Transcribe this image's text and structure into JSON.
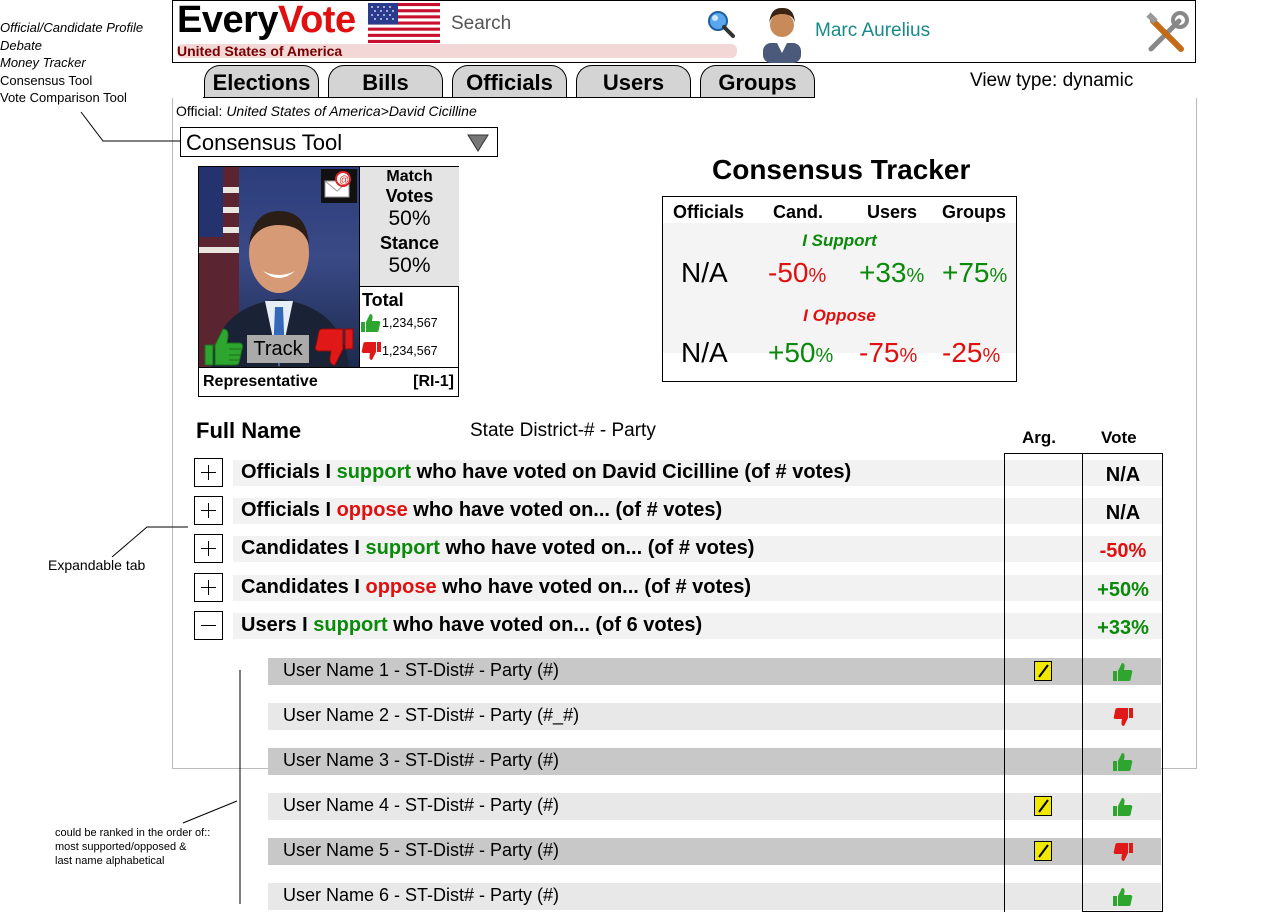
{
  "side_menu": {
    "items": [
      {
        "label": "Official/Candidate Profile",
        "italic": true
      },
      {
        "label": "Debate",
        "italic": true
      },
      {
        "label": "Money Tracker",
        "italic": true
      },
      {
        "label": "Consensus Tool",
        "italic": false
      },
      {
        "label": "Vote Comparison Tool",
        "italic": false
      }
    ]
  },
  "header": {
    "logo_part1": "Every",
    "logo_part2": "Vote",
    "country": "United States of America",
    "search_placeholder": "Search",
    "user_name": "Marc Aurelius",
    "icons": [
      "us-flag-icon",
      "search-icon",
      "avatar-icon",
      "tools-icon"
    ]
  },
  "tabs": [
    "Elections",
    "Bills",
    "Officials",
    "Users",
    "Groups"
  ],
  "view_type": "View type: dynamic",
  "breadcrumb": {
    "prefix": "Official: ",
    "path": "United States of America>David Cicilline"
  },
  "tool_dropdown": {
    "selected": "Consensus Tool"
  },
  "profile": {
    "match_label": "Match",
    "votes_label": "Votes",
    "votes_value": "50%",
    "stance_label": "Stance",
    "stance_value": "50%",
    "total_label": "Total",
    "support_count": "1,234,567",
    "oppose_count": "1,234,567",
    "track_label": "Track",
    "role": "Representative",
    "district": "[RI-1]"
  },
  "consensus": {
    "title": "Consensus Tracker",
    "headers": [
      "Officials",
      "Cand.",
      "Users",
      "Groups"
    ],
    "support_label": "I Support",
    "oppose_label": "I Oppose",
    "support_row": [
      {
        "num": "N/A",
        "pct": "",
        "color": "#000000"
      },
      {
        "num": "-50",
        "pct": "%",
        "color": "#e01010"
      },
      {
        "num": "+33",
        "pct": "%",
        "color": "#0a8a0a"
      },
      {
        "num": "+75",
        "pct": "%",
        "color": "#0a8a0a"
      }
    ],
    "oppose_row": [
      {
        "num": "N/A",
        "pct": "",
        "color": "#000000"
      },
      {
        "num": "+50",
        "pct": "%",
        "color": "#0a8a0a"
      },
      {
        "num": "-75",
        "pct": "%",
        "color": "#e01010"
      },
      {
        "num": "-25",
        "pct": "%",
        "color": "#e01010"
      }
    ]
  },
  "list": {
    "full_name_header": "Full Name",
    "district_header": "State District-# - Party",
    "arg_header": "Arg.",
    "vote_header": "Vote",
    "groups": [
      {
        "pre": "Officials I ",
        "kw": "support",
        "kw_color": "#0a8a0a",
        "post": " who have voted on David Cicilline (of # votes)",
        "vote": "N/A",
        "vote_color": "#000000",
        "expanded": false
      },
      {
        "pre": "Officials I ",
        "kw": "oppose",
        "kw_color": "#e01010",
        "post": " who have voted on... (of # votes)",
        "vote": "N/A",
        "vote_color": "#000000",
        "expanded": false
      },
      {
        "pre": "Candidates I ",
        "kw": "support",
        "kw_color": "#0a8a0a",
        "post": " who have voted on... (of # votes)",
        "vote": "-50%",
        "vote_color": "#e01010",
        "expanded": false
      },
      {
        "pre": "Candidates I ",
        "kw": "oppose",
        "kw_color": "#e01010",
        "post": " who have voted on... (of # votes)",
        "vote": "+50%",
        "vote_color": "#0a8a0a",
        "expanded": false
      },
      {
        "pre": "Users I ",
        "kw": "support",
        "kw_color": "#0a8a0a",
        "post": " who have voted on... (of 6 votes)",
        "vote": "+33%",
        "vote_color": "#0a8a0a",
        "expanded": true
      }
    ],
    "users": [
      {
        "name": "User Name 1 - ST-Dist# - Party (#)",
        "has_arg": true,
        "vote": "up"
      },
      {
        "name": "User Name 2 - ST-Dist# - Party (#_#)",
        "has_arg": false,
        "vote": "down"
      },
      {
        "name": "User Name 3 - ST-Dist# - Party (#)",
        "has_arg": false,
        "vote": "up"
      },
      {
        "name": "User Name 4 - ST-Dist# - Party (#)",
        "has_arg": true,
        "vote": "up"
      },
      {
        "name": "User Name 5 - ST-Dist# - Party (#)",
        "has_arg": true,
        "vote": "down"
      },
      {
        "name": "User Name 6 - ST-Dist# - Party (#)",
        "has_arg": false,
        "vote": "up"
      }
    ]
  },
  "annotations": {
    "expandable": "Expandable tab",
    "ranking_lines": [
      "could be ranked in the order of::",
      "most supported/opposed &",
      "last name alphabetical"
    ]
  }
}
